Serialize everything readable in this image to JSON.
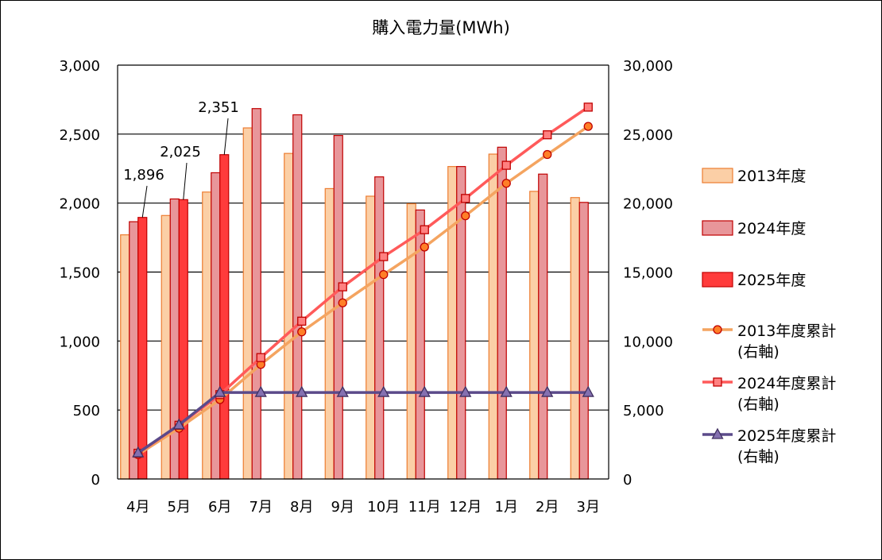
{
  "chart_data": {
    "type": "bar",
    "title": "購入電力量(MWh)",
    "categories": [
      "4月",
      "5月",
      "6月",
      "7月",
      "8月",
      "9月",
      "10月",
      "11月",
      "12月",
      "1月",
      "2月",
      "3月"
    ],
    "y_left": {
      "ylim": [
        0,
        3000
      ],
      "ticks": [
        "0",
        "500",
        "1,000",
        "1,500",
        "2,000",
        "2,500",
        "3,000"
      ]
    },
    "y_right": {
      "ylim": [
        0,
        30000
      ],
      "ticks": [
        "0",
        "5,000",
        "10,000",
        "15,000",
        "20,000",
        "25,000",
        "30,000"
      ]
    },
    "bar_series": [
      {
        "name": "2013年度",
        "fill": "#FBCFA6",
        "stroke": "#ED7D31",
        "values": [
          1770,
          1910,
          2080,
          2545,
          2360,
          2105,
          2050,
          1995,
          2265,
          2355,
          2085,
          2040
        ]
      },
      {
        "name": "2024年度",
        "fill": "#E8969A",
        "stroke": "#C00000",
        "values": [
          1865,
          2030,
          2220,
          2685,
          2640,
          2490,
          2190,
          1950,
          2265,
          2405,
          2210,
          2005
        ]
      },
      {
        "name": "2025年度",
        "fill": "#FF3B3B",
        "stroke": "#C00000",
        "values": [
          1896,
          2025,
          2351
        ]
      }
    ],
    "line_series": [
      {
        "name": "2013年度累計",
        "axis_note": "(右軸)",
        "color": "#F4A460",
        "marker": "circle",
        "marker_fill": "#FF7F27",
        "marker_stroke": "#C00000",
        "values": [
          1770,
          3680,
          5760,
          8305,
          10665,
          12770,
          14820,
          16815,
          19080,
          21435,
          23520,
          25560
        ]
      },
      {
        "name": "2024年度累計",
        "axis_note": "(右軸)",
        "color": "#FF5A5A",
        "marker": "square",
        "marker_fill": "#FF8080",
        "marker_stroke": "#C00000",
        "values": [
          1865,
          3895,
          6115,
          8800,
          11440,
          13930,
          16120,
          18070,
          20335,
          22740,
          24950,
          26955
        ]
      },
      {
        "name": "2025年度累計",
        "axis_note": "(右軸)",
        "color": "#5B4A8A",
        "marker": "triangle",
        "marker_fill": "#8470B0",
        "marker_stroke": "#403060",
        "values": [
          1896,
          3921,
          6272,
          6272,
          6272,
          6272,
          6272,
          6272,
          6272,
          6272,
          6272,
          6272
        ]
      }
    ],
    "data_labels": [
      {
        "series": "2025年度",
        "index": 0,
        "text": "1,896"
      },
      {
        "series": "2025年度",
        "index": 1,
        "text": "2,025"
      },
      {
        "series": "2025年度",
        "index": 2,
        "text": "2,351"
      }
    ],
    "grid": true,
    "legend_position": "right"
  }
}
